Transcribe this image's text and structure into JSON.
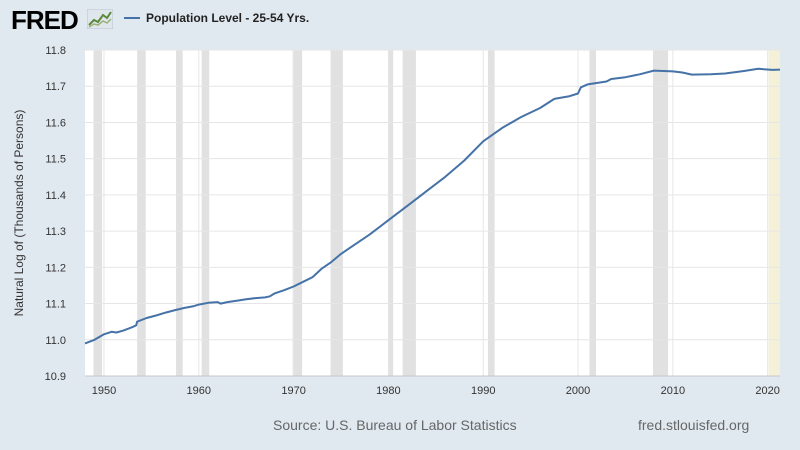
{
  "header": {
    "logo_text": "FRED",
    "legend_label": "Population Level - 25-54 Yrs."
  },
  "colors": {
    "series": "#4572a7",
    "recession": "#e1e1e1",
    "forecast": "#f5f1d8",
    "background": "#e1e9f0",
    "plot_background": "#ffffff"
  },
  "footer": {
    "source": "Source: U.S. Bureau of Labor Statistics",
    "url": "fred.stlouisfed.org"
  },
  "chart_data": {
    "type": "line",
    "title": "",
    "xlabel": "",
    "ylabel": "Natural Log of (Thousands of Persons)",
    "xlim": [
      1948,
      2021.3
    ],
    "ylim": [
      10.9,
      11.8
    ],
    "x_ticks": [
      1950,
      1960,
      1970,
      1980,
      1990,
      2000,
      2010,
      2020
    ],
    "y_ticks": [
      10.9,
      11.0,
      11.1,
      11.2,
      11.3,
      11.4,
      11.5,
      11.6,
      11.7,
      11.8
    ],
    "grid": true,
    "legend_position": "top-left",
    "recessions": [
      [
        1948.9,
        1949.8
      ],
      [
        1953.5,
        1954.4
      ],
      [
        1957.6,
        1958.3
      ],
      [
        1960.3,
        1961.1
      ],
      [
        1969.9,
        1970.9
      ],
      [
        1973.9,
        1975.2
      ],
      [
        1980.0,
        1980.5
      ],
      [
        1981.5,
        1982.9
      ],
      [
        1990.5,
        1991.2
      ],
      [
        2001.2,
        2001.9
      ],
      [
        2007.9,
        2009.5
      ],
      [
        2020.1,
        2021.3
      ]
    ],
    "series": [
      {
        "name": "Population Level - 25-54 Yrs.",
        "points": [
          [
            1948.0,
            10.99
          ],
          [
            1949.0,
            11.0
          ],
          [
            1950.0,
            11.015
          ],
          [
            1950.8,
            11.022
          ],
          [
            1951.3,
            11.02
          ],
          [
            1952.0,
            11.025
          ],
          [
            1953.0,
            11.035
          ],
          [
            1953.4,
            11.04
          ],
          [
            1953.5,
            11.05
          ],
          [
            1954.5,
            11.06
          ],
          [
            1955.5,
            11.067
          ],
          [
            1956.5,
            11.075
          ],
          [
            1957.5,
            11.082
          ],
          [
            1958.5,
            11.088
          ],
          [
            1959.5,
            11.093
          ],
          [
            1960.0,
            11.097
          ],
          [
            1961.0,
            11.102
          ],
          [
            1962.0,
            11.104
          ],
          [
            1962.3,
            11.1
          ],
          [
            1963.0,
            11.104
          ],
          [
            1964.0,
            11.108
          ],
          [
            1965.0,
            11.112
          ],
          [
            1966.0,
            11.115
          ],
          [
            1967.0,
            11.117
          ],
          [
            1967.5,
            11.12
          ],
          [
            1968.0,
            11.128
          ],
          [
            1969.0,
            11.137
          ],
          [
            1970.0,
            11.147
          ],
          [
            1971.0,
            11.16
          ],
          [
            1972.0,
            11.173
          ],
          [
            1973.0,
            11.197
          ],
          [
            1974.0,
            11.215
          ],
          [
            1975.0,
            11.237
          ],
          [
            1976.0,
            11.255
          ],
          [
            1978.0,
            11.29
          ],
          [
            1980.0,
            11.33
          ],
          [
            1982.0,
            11.37
          ],
          [
            1984.0,
            11.41
          ],
          [
            1986.0,
            11.45
          ],
          [
            1988.0,
            11.495
          ],
          [
            1990.0,
            11.548
          ],
          [
            1992.0,
            11.585
          ],
          [
            1994.0,
            11.615
          ],
          [
            1996.0,
            11.64
          ],
          [
            1997.5,
            11.665
          ],
          [
            1999.0,
            11.672
          ],
          [
            2000.0,
            11.68
          ],
          [
            2000.3,
            11.697
          ],
          [
            2001.0,
            11.705
          ],
          [
            2003.0,
            11.713
          ],
          [
            2003.5,
            11.72
          ],
          [
            2005.0,
            11.725
          ],
          [
            2006.5,
            11.733
          ],
          [
            2008.0,
            11.743
          ],
          [
            2009.0,
            11.742
          ],
          [
            2010.0,
            11.741
          ],
          [
            2011.0,
            11.738
          ],
          [
            2012.0,
            11.732
          ],
          [
            2014.0,
            11.733
          ],
          [
            2015.5,
            11.735
          ],
          [
            2017.5,
            11.742
          ],
          [
            2019.0,
            11.748
          ],
          [
            2020.5,
            11.745
          ],
          [
            2021.3,
            11.746
          ]
        ]
      }
    ]
  }
}
